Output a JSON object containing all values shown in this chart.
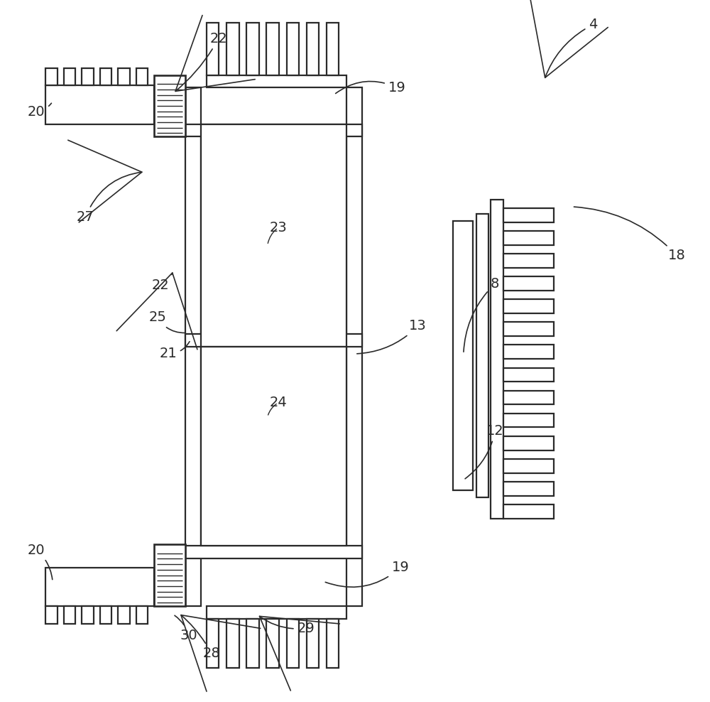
{
  "bg_color": "#ffffff",
  "line_color": "#2a2a2a",
  "lw": 1.6,
  "fig_width": 10.0,
  "fig_height": 9.88
}
